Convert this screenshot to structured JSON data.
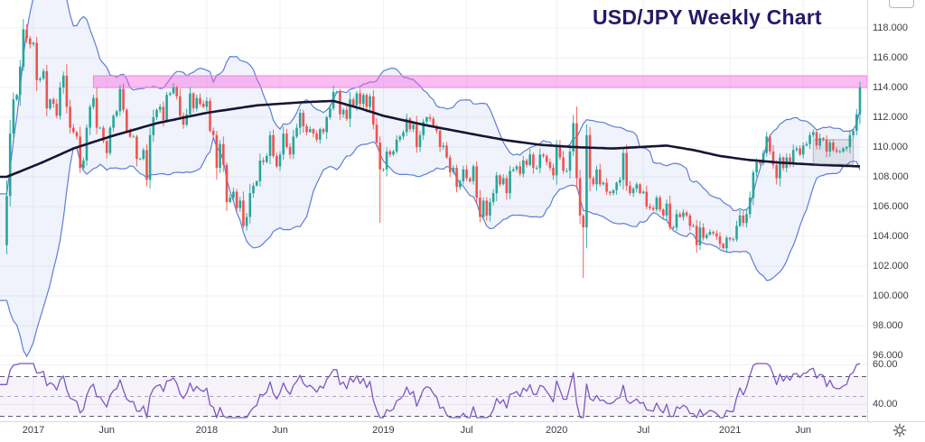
{
  "colors": {
    "background": "#ffffff",
    "grid": "#f0f0f4",
    "candle_up": "#26a69a",
    "candle_down": "#ef5350",
    "bollinger_line": "#5b7fd8",
    "bollinger_fill": "rgba(91,127,216,0.09)",
    "ma_line": "#141434",
    "resistance_fill": "rgba(245,95,225,0.42)",
    "resistance_border": "#f77fe2",
    "box_fill": "rgba(124,130,140,0.16)",
    "box_border": "rgba(110,116,126,0.45)",
    "rsi_line": "#7e57c2",
    "rsi_fill": "rgba(126,87,194,0.07)",
    "rsi_band_line": "#565672",
    "rsi_middle_line": "#aaa3c4",
    "axis_text": "#3c3c43",
    "title": "#241a69",
    "separator": "#d9d9de",
    "icon": "#55555c"
  },
  "icons": {
    "settings": "gear",
    "scale_button": "collapsed-price-scale-box"
  },
  "chart_data": {
    "type": "candlestick",
    "title": "USD/JPY Weekly Chart",
    "symbol": "USD/JPY",
    "timeframe": "Weekly",
    "y_axis": {
      "ticks": [
        "118.000",
        "116.000",
        "114.000",
        "112.000",
        "110.000",
        "108.000",
        "106.000",
        "104.000",
        "102.000",
        "100.000",
        "98.000",
        "96.000"
      ],
      "values": [
        118,
        116,
        114,
        112,
        110,
        108,
        106,
        104,
        102,
        100,
        98,
        96
      ]
    },
    "indicator_axis": {
      "ticks": [
        "60.00",
        "40.00"
      ],
      "values": [
        60,
        40
      ]
    },
    "x_axis": {
      "labels": [
        {
          "label": "2017",
          "week": 8
        },
        {
          "label": "Jun",
          "week": 30
        },
        {
          "label": "2018",
          "week": 60
        },
        {
          "label": "Jun",
          "week": 82
        },
        {
          "label": "2019",
          "week": 113
        },
        {
          "label": "Jul",
          "week": 138
        },
        {
          "label": "2020",
          "week": 165
        },
        {
          "label": "Jul",
          "week": 191
        },
        {
          "label": "2021",
          "week": 217
        },
        {
          "label": "Jun",
          "week": 239
        }
      ]
    },
    "series": {
      "name": "USD/JPY weekly candles",
      "first_open": 103.4,
      "closes": [
        106.7,
        110.9,
        113.2,
        113.5,
        115.4,
        117.9,
        117.3,
        116.9,
        117.0,
        114.5,
        114.6,
        115.1,
        112.6,
        113.2,
        112.9,
        112.1,
        114.0,
        114.8,
        112.7,
        111.3,
        111.0,
        110.7,
        108.6,
        109.1,
        111.3,
        112.7,
        113.3,
        111.3,
        111.3,
        110.4,
        109.6,
        111.3,
        112.1,
        112.4,
        113.9,
        112.5,
        111.1,
        110.7,
        110.7,
        109.2,
        109.2,
        109.8,
        107.8,
        110.8,
        112.0,
        112.5,
        112.7,
        111.8,
        113.5,
        113.6,
        114.0,
        113.4,
        112.1,
        111.5,
        112.2,
        113.6,
        112.6,
        113.3,
        112.9,
        112.7,
        113.1,
        111.1,
        110.8,
        108.6,
        110.2,
        108.8,
        106.3,
        106.6,
        107.0,
        105.9,
        106.4,
        104.7,
        105.3,
        106.9,
        107.4,
        107.7,
        109.1,
        109.0,
        109.4,
        110.8,
        109.4,
        108.7,
        109.5,
        110.9,
        110.0,
        109.5,
        110.7,
        111.3,
        112.3,
        111.4,
        111.0,
        111.2,
        110.9,
        110.5,
        111.2,
        111.0,
        112.0,
        112.6,
        113.7,
        113.7,
        112.2,
        112.5,
        111.9,
        113.2,
        112.8,
        113.6,
        112.9,
        113.5,
        112.7,
        113.4,
        111.5,
        110.3,
        108.5,
        108.5,
        109.7,
        109.5,
        109.7,
        110.5,
        110.7,
        111.0,
        111.9,
        111.2,
        111.5,
        110.0,
        110.8,
        111.7,
        112.0,
        111.9,
        111.4,
        111.1,
        110.0,
        110.1,
        109.3,
        108.3,
        108.6,
        107.3,
        107.7,
        108.5,
        107.9,
        107.7,
        108.7,
        106.6,
        105.3,
        106.4,
        105.4,
        106.3,
        106.9,
        108.1,
        107.5,
        107.9,
        106.9,
        108.4,
        108.5,
        108.7,
        108.2,
        109.1,
        108.8,
        109.5,
        108.6,
        108.6,
        109.5,
        109.4,
        109.0,
        108.6,
        108.1,
        110.1,
        109.3,
        108.4,
        108.4,
        109.7,
        111.6,
        107.9,
        105.4,
        104.6,
        110.8,
        107.9,
        107.5,
        108.5,
        107.5,
        107.6,
        107.0,
        106.9,
        107.1,
        107.6,
        107.8,
        109.6,
        107.4,
        106.9,
        107.2,
        107.5,
        106.9,
        107.0,
        106.0,
        105.9,
        105.8,
        106.6,
        105.8,
        105.4,
        106.2,
        104.6,
        104.6,
        105.5,
        105.3,
        105.6,
        105.4,
        104.7,
        104.7,
        103.4,
        104.6,
        103.9,
        104.1,
        104.3,
        104.2,
        104.0,
        103.5,
        103.2,
        103.9,
        103.8,
        103.8,
        104.7,
        105.4,
        104.9,
        105.5,
        106.6,
        108.3,
        109.0,
        108.9,
        109.6,
        110.7,
        109.7,
        108.8,
        107.9,
        109.3,
        108.6,
        109.3,
        108.9,
        109.8,
        109.9,
        109.5,
        110.1,
        110.2,
        110.8,
        111.0,
        110.1,
        110.6,
        110.5,
        109.7,
        110.3,
        109.8,
        109.7,
        109.7,
        109.9,
        110.0,
        110.8,
        111.1,
        112.2,
        114.0
      ],
      "wick_overrides": {
        "0": {
          "low": 102.8
        },
        "5": {
          "high": 118.6
        },
        "112": {
          "low": 104.9
        },
        "173": {
          "low": 101.2
        },
        "174": {
          "high": 111.5
        },
        "256": {
          "high": 114.4
        }
      }
    },
    "overlays": {
      "bollinger": {
        "window": 20,
        "mult": 2,
        "pre_closes": [
          104.8,
          102.1,
          99.9,
          100.6,
          103.9,
          105.6,
          104.2,
          100.4,
          101.1,
          101.3,
          102.8,
          103.4,
          104.2,
          104.5,
          103.8,
          104.9,
          104.6,
          103.7,
          103.3,
          104.5
        ]
      },
      "long_ma_anchors": [
        [
          0,
          108.0
        ],
        [
          10,
          108.9
        ],
        [
          20,
          109.9
        ],
        [
          31,
          110.7
        ],
        [
          45,
          111.6
        ],
        [
          60,
          112.3
        ],
        [
          75,
          112.8
        ],
        [
          88,
          113.0
        ],
        [
          98,
          113.1
        ],
        [
          106,
          112.6
        ],
        [
          113,
          112.1
        ],
        [
          125,
          111.5
        ],
        [
          139,
          110.9
        ],
        [
          150,
          110.45
        ],
        [
          160,
          110.15
        ],
        [
          170,
          110.0
        ],
        [
          182,
          109.9
        ],
        [
          190,
          110.0
        ],
        [
          198,
          110.1
        ],
        [
          206,
          109.8
        ],
        [
          214,
          109.4
        ],
        [
          222,
          109.15
        ],
        [
          232,
          108.95
        ],
        [
          244,
          108.8
        ],
        [
          256,
          108.7
        ]
      ],
      "resistance_zone": {
        "start_week": 26,
        "price_top": 114.79,
        "price_bottom": 114.0
      },
      "consolidation_box": {
        "start_week": 242,
        "end_week": 254,
        "price_top": 110.5,
        "price_bottom": 108.85
      }
    },
    "indicator": {
      "name": "RSI",
      "period": 14,
      "upper_band": 60,
      "middle": 50,
      "lower_band": 40
    }
  }
}
